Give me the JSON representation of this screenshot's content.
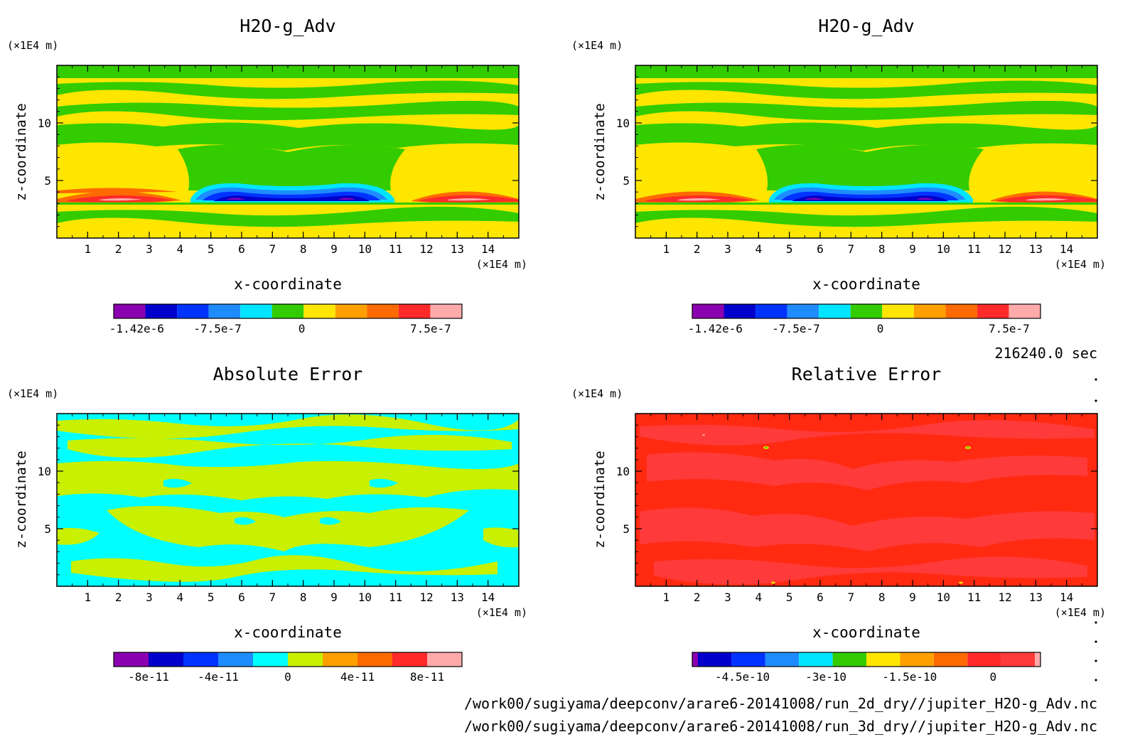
{
  "time_label": "216240.0 sec",
  "file_paths": [
    "/work00/sugiyama/deepconv/arare6-20141008/run_2d_dry//jupiter_H2O-g_Adv.nc",
    "/work00/sugiyama/deepconv/arare6-20141008/run_3d_dry//jupiter_H2O-g_Adv.nc"
  ],
  "chart_data": [
    {
      "type": "heatmap",
      "title": "H2O-g_Adv",
      "xlabel": "x-coordinate",
      "ylabel": "z-coordinate",
      "x_unit": "(×1E4 m)",
      "y_unit": "(×1E4 m)",
      "xlim": [
        0,
        15
      ],
      "ylim": [
        0,
        15
      ],
      "x_ticks": [
        "1",
        "2",
        "3",
        "4",
        "5",
        "6",
        "7",
        "8",
        "9",
        "10",
        "11",
        "12",
        "13",
        "14"
      ],
      "y_ticks": [
        "5",
        "10"
      ],
      "colorbar": {
        "colors": [
          "#8b00b0",
          "#0000cc",
          "#0033ff",
          "#1e8cff",
          "#00e5ff",
          "#33cc00",
          "#ffe600",
          "#ffa000",
          "#ff6a00",
          "#ff2a2a",
          "#ffaaaa"
        ],
        "tick_labels": [
          "-1.42e-6",
          "-7.5e-7",
          "0",
          "7.5e-7"
        ]
      }
    },
    {
      "type": "heatmap",
      "title": "H2O-g_Adv",
      "xlabel": "x-coordinate",
      "ylabel": "z-coordinate",
      "x_unit": "(×1E4 m)",
      "y_unit": "(×1E4 m)",
      "xlim": [
        0,
        15
      ],
      "ylim": [
        0,
        15
      ],
      "x_ticks": [
        "1",
        "2",
        "3",
        "4",
        "5",
        "6",
        "7",
        "8",
        "9",
        "10",
        "11",
        "12",
        "13",
        "14"
      ],
      "y_ticks": [
        "5",
        "10"
      ],
      "colorbar": {
        "colors": [
          "#8b00b0",
          "#0000cc",
          "#0033ff",
          "#1e8cff",
          "#00e5ff",
          "#33cc00",
          "#ffe600",
          "#ffa000",
          "#ff6a00",
          "#ff2a2a",
          "#ffaaaa"
        ],
        "tick_labels": [
          "-1.42e-6",
          "-7.5e-7",
          "0",
          "7.5e-7"
        ]
      }
    },
    {
      "type": "heatmap",
      "title": "Absolute Error",
      "xlabel": "x-coordinate",
      "ylabel": "z-coordinate",
      "x_unit": "(×1E4 m)",
      "y_unit": "(×1E4 m)",
      "xlim": [
        0,
        15
      ],
      "ylim": [
        0,
        15
      ],
      "x_ticks": [
        "1",
        "2",
        "3",
        "4",
        "5",
        "6",
        "7",
        "8",
        "9",
        "10",
        "11",
        "12",
        "13",
        "14"
      ],
      "y_ticks": [
        "5",
        "10"
      ],
      "colorbar": {
        "colors": [
          "#8b00b0",
          "#0000cc",
          "#0033ff",
          "#1e8cff",
          "#00ffff",
          "#c8f000",
          "#ffa000",
          "#ff6a00",
          "#ff2a2a",
          "#ffaaaa"
        ],
        "tick_labels": [
          "-8e-11",
          "-4e-11",
          "0",
          "4e-11",
          "8e-11"
        ]
      }
    },
    {
      "type": "heatmap",
      "title": "Relative Error",
      "xlabel": "x-coordinate",
      "ylabel": "z-coordinate",
      "x_unit": "(×1E4 m)",
      "y_unit": "(×1E4 m)",
      "xlim": [
        0,
        15
      ],
      "ylim": [
        0,
        15
      ],
      "x_ticks": [
        "1",
        "2",
        "3",
        "4",
        "5",
        "6",
        "7",
        "8",
        "9",
        "10",
        "11",
        "12",
        "13",
        "14"
      ],
      "y_ticks": [
        "5",
        "10"
      ],
      "colorbar": {
        "colors": [
          "#8b00b0",
          "#0000cc",
          "#0033ff",
          "#1e8cff",
          "#00e5ff",
          "#33cc00",
          "#ffe600",
          "#ffa000",
          "#ff6a00",
          "#ff2a2a",
          "#ff3a3a",
          "#ffaaaa"
        ],
        "tick_labels": [
          "-4.5e-10",
          "-3e-10",
          "-1.5e-10",
          "0"
        ]
      }
    }
  ]
}
